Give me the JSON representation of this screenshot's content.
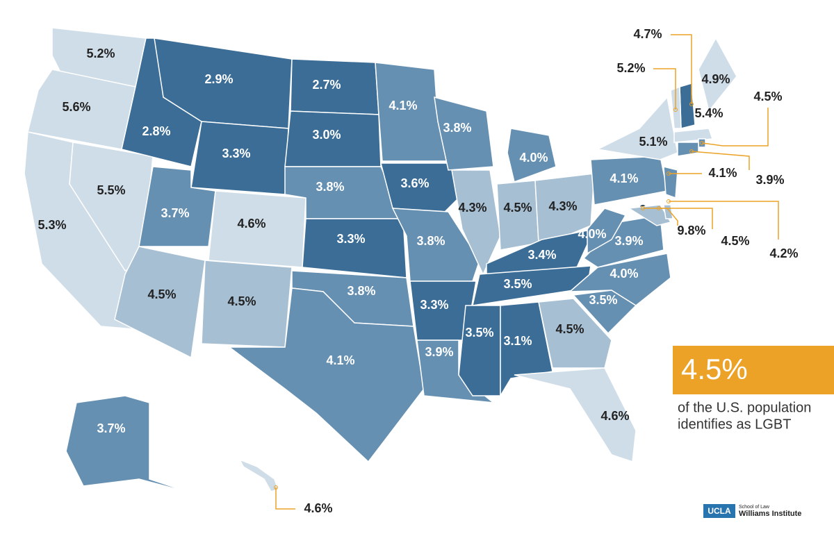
{
  "map": {
    "regions": [
      {
        "label": "5.2%",
        "color": "#cfdde8"
      },
      {
        "label": "5.6%",
        "color": "#cfdde8"
      },
      {
        "label": "5.3%",
        "color": "#cfdde8"
      },
      {
        "label": "5.5%",
        "color": "#cfdde8"
      },
      {
        "label": "2.8%",
        "color": "#3b6d96"
      },
      {
        "label": "2.9%",
        "color": "#3b6d96"
      },
      {
        "label": "3.3%",
        "color": "#3b6d96"
      },
      {
        "label": "2.7%",
        "color": "#3b6d96"
      },
      {
        "label": "3.0%",
        "color": "#3b6d96"
      },
      {
        "label": "3.7%",
        "color": "#6690b2"
      },
      {
        "label": "4.6%",
        "color": "#cfdde8"
      },
      {
        "label": "4.5%",
        "color": "#a6bfd3"
      },
      {
        "label": "4.5%",
        "color": "#a6bfd3"
      },
      {
        "label": "3.8%",
        "color": "#6690b2"
      },
      {
        "label": "3.3%",
        "color": "#3b6d96"
      },
      {
        "label": "3.8%",
        "color": "#6690b2"
      },
      {
        "label": "4.1%",
        "color": "#6690b2"
      },
      {
        "label": "4.1%",
        "color": "#6690b2"
      },
      {
        "label": "3.6%",
        "color": "#3b6d96"
      },
      {
        "label": "3.8%",
        "color": "#6690b2"
      },
      {
        "label": "3.3%",
        "color": "#3b6d96"
      },
      {
        "label": "3.9%",
        "color": "#6690b2"
      },
      {
        "label": "3.8%",
        "color": "#6690b2"
      },
      {
        "label": "4.3%",
        "color": "#a6bfd3"
      },
      {
        "label": "4.0%",
        "color": "#6690b2"
      },
      {
        "label": "4.5%",
        "color": "#a6bfd3"
      },
      {
        "label": "4.3%",
        "color": "#a6bfd3"
      },
      {
        "label": "3.4%",
        "color": "#3b6d96"
      },
      {
        "label": "3.5%",
        "color": "#3b6d96"
      },
      {
        "label": "3.5%",
        "color": "#3b6d96"
      },
      {
        "label": "3.1%",
        "color": "#3b6d96"
      },
      {
        "label": "4.5%",
        "color": "#a6bfd3"
      },
      {
        "label": "4.6%",
        "color": "#cfdde8"
      },
      {
        "label": "3.5%",
        "color": "#6690b2"
      },
      {
        "label": "4.0%",
        "color": "#6690b2"
      },
      {
        "label": "3.9%",
        "color": "#6690b2"
      },
      {
        "label": "4.0%",
        "color": "#6690b2"
      },
      {
        "label": "4.1%",
        "color": "#6690b2"
      },
      {
        "label": "5.1%",
        "color": "#cfdde8"
      },
      {
        "label": "4.9%",
        "color": "#cfdde8"
      },
      {
        "label": "4.7%",
        "color": "#3b6d96"
      },
      {
        "label": "5.2%",
        "color": "#cfdde8"
      },
      {
        "label": "5.4%",
        "color": "#cfdde8"
      },
      {
        "label": "4.5%",
        "color": "#6690b2"
      },
      {
        "label": "3.9%",
        "color": "#6690b2"
      },
      {
        "label": "4.1%",
        "color": "#6690b2"
      },
      {
        "label": "9.8%",
        "color": "#2b3d4f"
      },
      {
        "label": "4.5%",
        "color": "#a6bfd3"
      },
      {
        "label": "4.2%",
        "color": "#a6bfd3"
      },
      {
        "label": "3.7%",
        "color": "#6690b2"
      },
      {
        "label": "4.6%",
        "color": "#cfdde8"
      }
    ],
    "summary": {
      "value": "4.5%",
      "line1": "of the U.S. population",
      "line2": "identifies as LGBT"
    },
    "logo": {
      "mark": "UCLA",
      "school": "School of Law",
      "institute": "Williams Institute"
    }
  }
}
